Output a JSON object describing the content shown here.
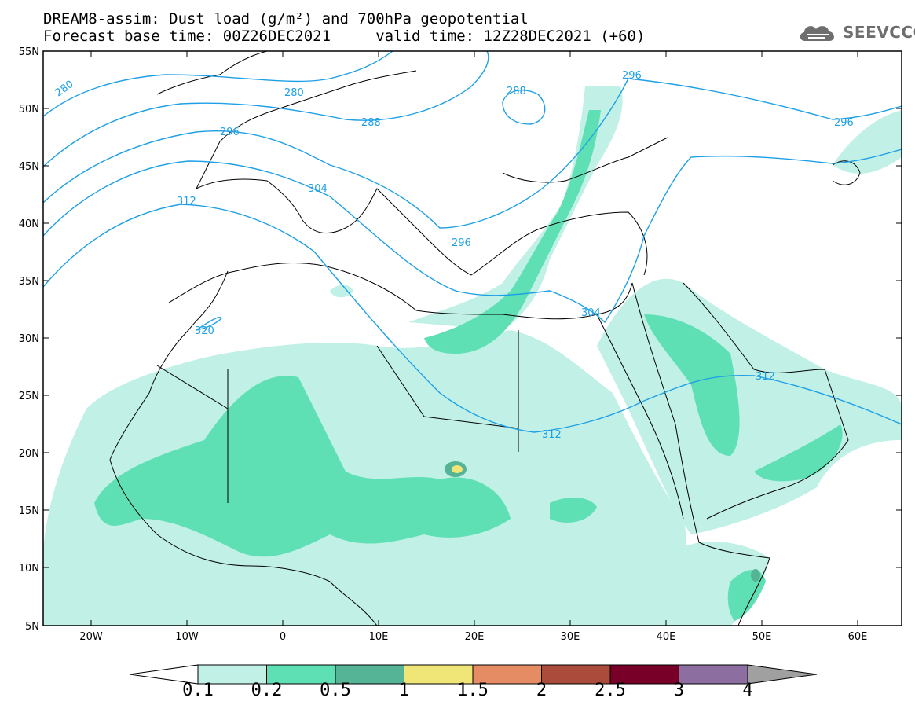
{
  "title": {
    "line1": "DREAM8-assim: Dust load (g/m²) and 700hPa geopotential",
    "line2": "Forecast base time: 00Z26DEC2021     valid time: 12Z28DEC2021 (+60)"
  },
  "logo": {
    "text": "SEEVCCC",
    "icon": "cloud-icon"
  },
  "map": {
    "lat_labels": [
      "55N",
      "50N",
      "45N",
      "40N",
      "35N",
      "30N",
      "25N",
      "20N",
      "15N",
      "10N",
      "5N"
    ],
    "lon_labels": [
      "20W",
      "10W",
      "0",
      "10E",
      "20E",
      "30E",
      "40E",
      "50E",
      "60E"
    ],
    "contour_labels": [
      "280",
      "280",
      "288",
      "288",
      "296",
      "296",
      "296",
      "296",
      "304",
      "304",
      "312",
      "312",
      "312",
      "320"
    ],
    "contour_color": "#1ea0e6"
  },
  "colorbar": {
    "labels": [
      "0.1",
      "0.2",
      "0.5",
      "1",
      "1.5",
      "2",
      "2.5",
      "3",
      "4"
    ],
    "colors": [
      "#c0f0e6",
      "#5fe0b4",
      "#55b496",
      "#f0e678",
      "#e68c64",
      "#aa4b3c",
      "#780028",
      "#8c6ea0",
      "#a0a0a0"
    ]
  }
}
